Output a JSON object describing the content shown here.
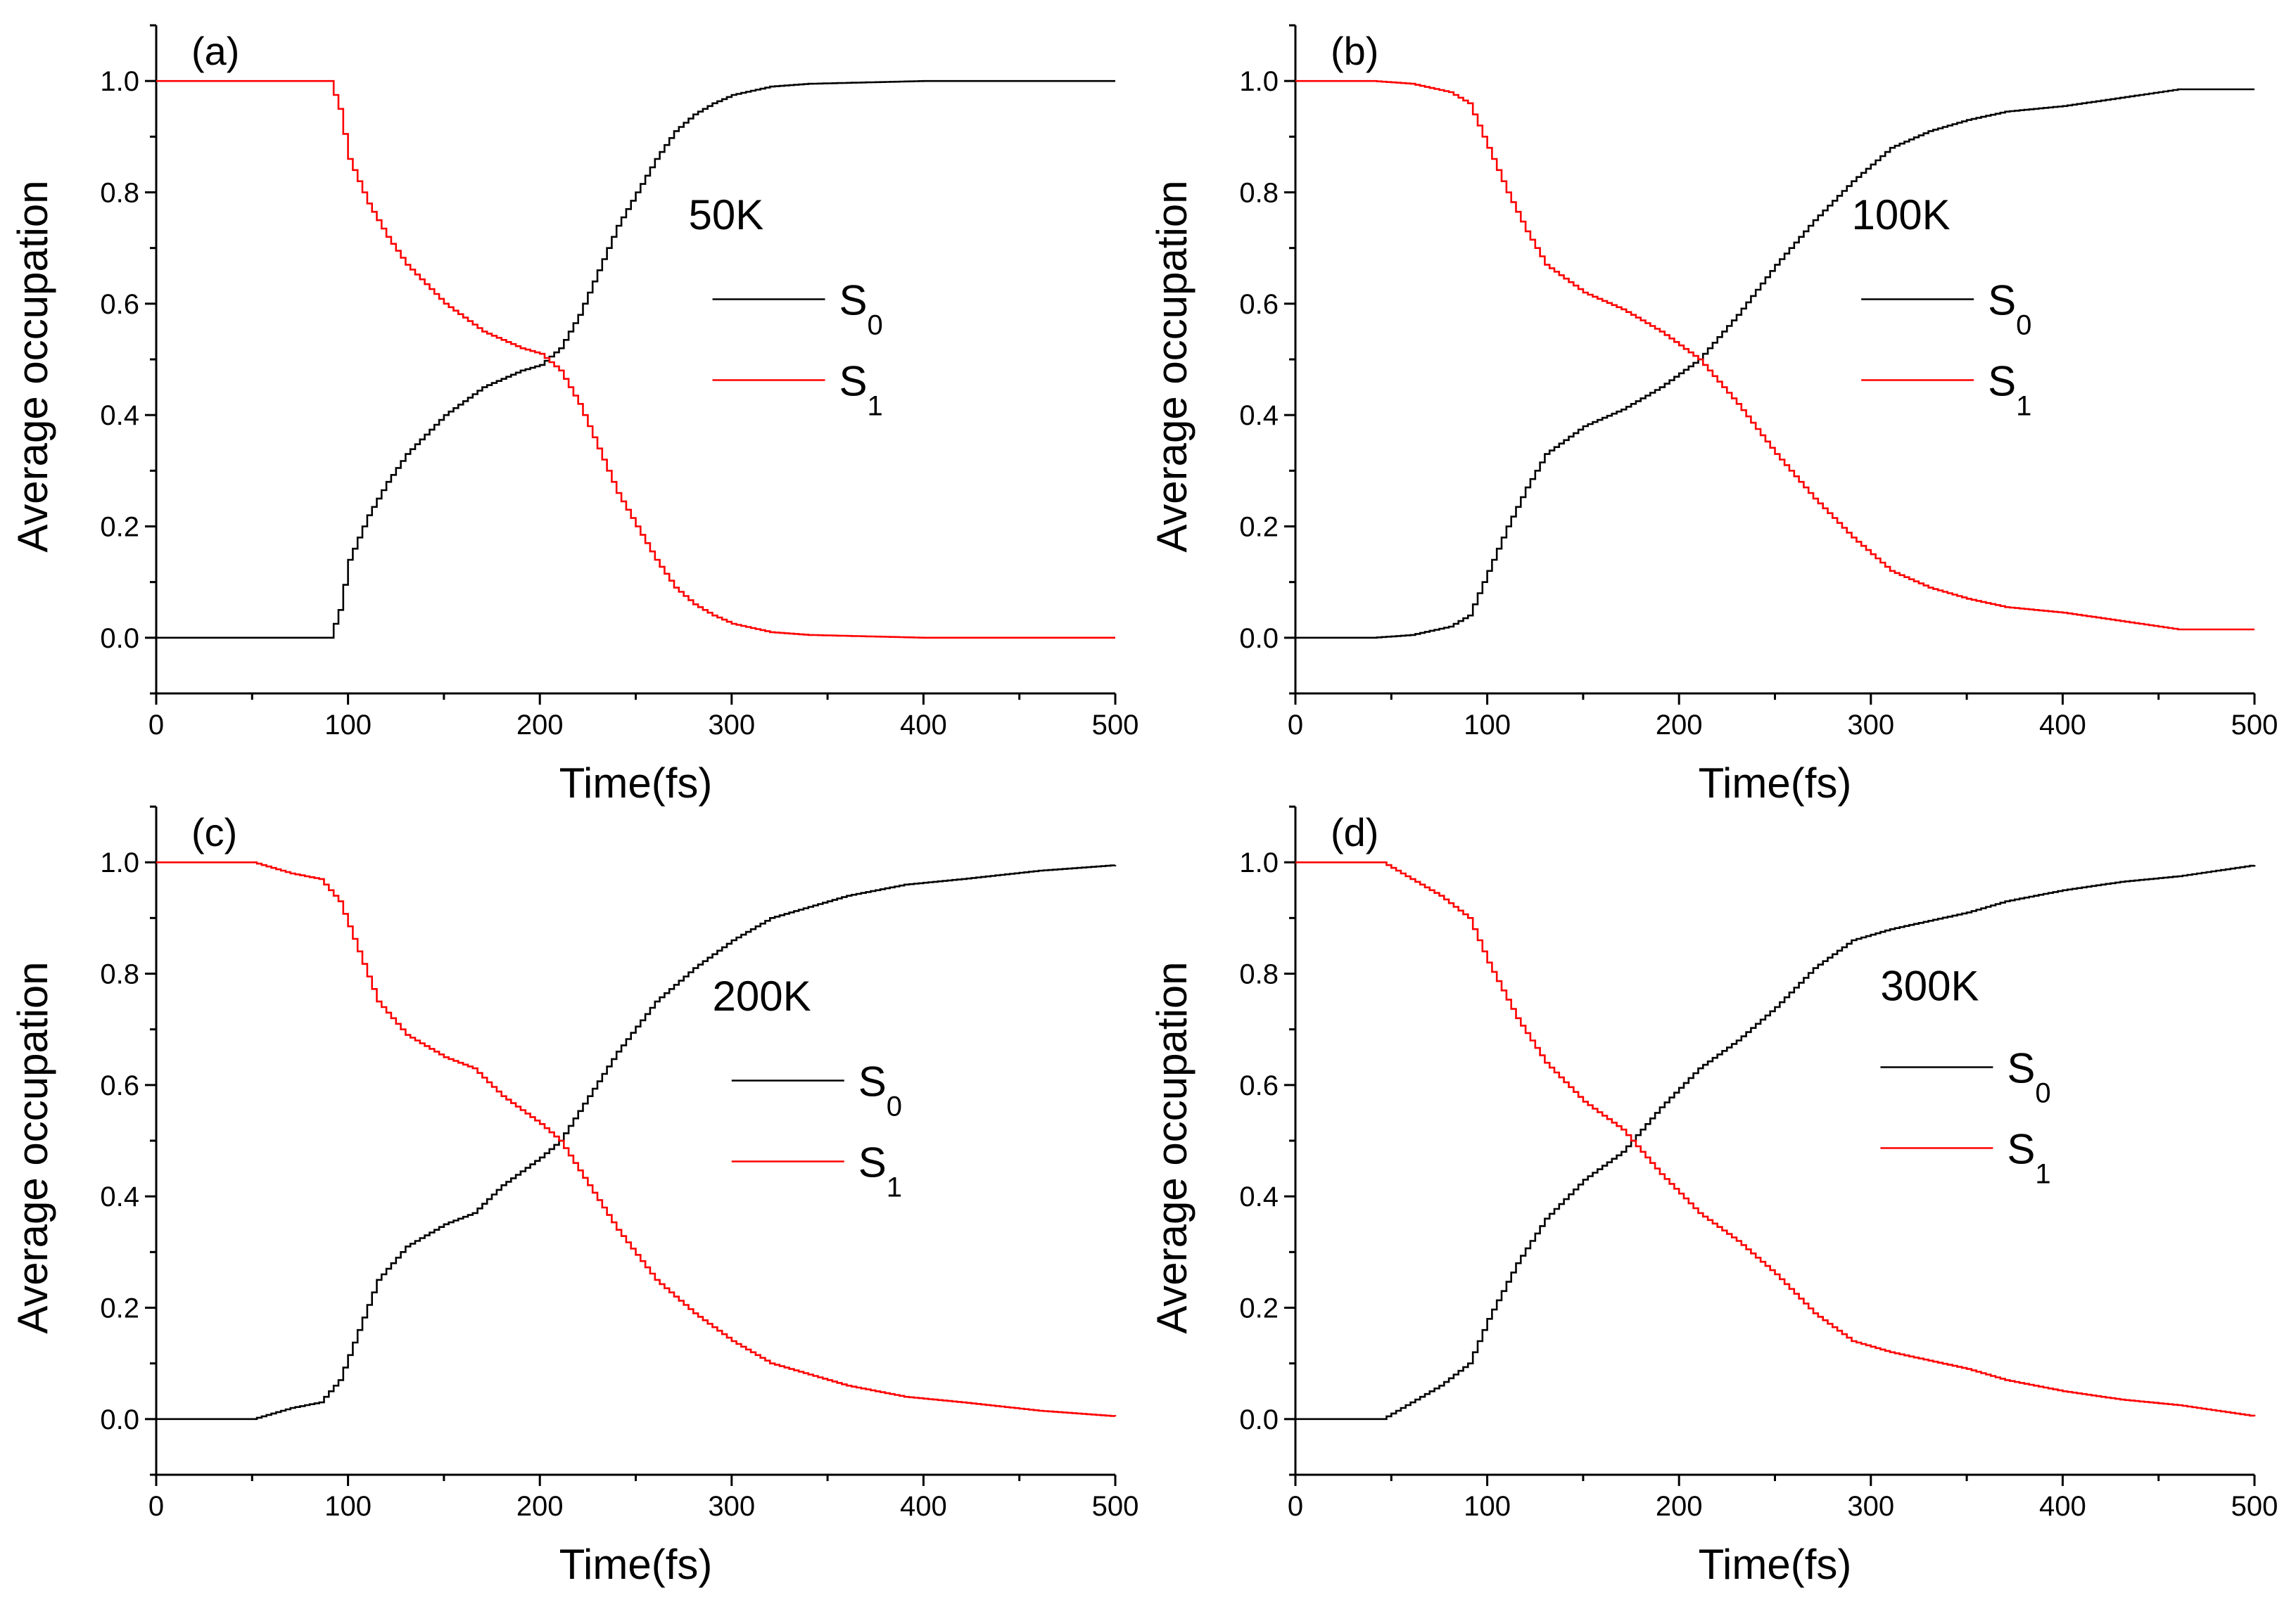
{
  "chart_data": [
    {
      "type": "line",
      "panel_label": "(a)",
      "temperature": "50K",
      "xlabel": "Time(fs)",
      "ylabel": "Average occupation",
      "xlim": [
        0,
        500
      ],
      "ylim": [
        -0.1,
        1.1
      ],
      "xticks": [
        0,
        100,
        200,
        300,
        400,
        500
      ],
      "yticks": [
        0.0,
        0.2,
        0.4,
        0.6,
        0.8,
        1.0
      ],
      "legend": [
        {
          "name": "S",
          "sub": "0",
          "color": "#000000"
        },
        {
          "name": "S",
          "sub": "1",
          "color": "#ff0000"
        }
      ],
      "series": [
        {
          "name": "S0",
          "color": "#000000",
          "x": [
            0,
            90,
            95,
            100,
            110,
            120,
            130,
            150,
            170,
            190,
            200,
            210,
            220,
            230,
            240,
            250,
            260,
            270,
            280,
            290,
            300,
            320,
            340,
            400,
            500
          ],
          "y": [
            0,
            0,
            0.05,
            0.14,
            0.22,
            0.28,
            0.33,
            0.4,
            0.45,
            0.48,
            0.49,
            0.52,
            0.58,
            0.66,
            0.74,
            0.8,
            0.86,
            0.91,
            0.94,
            0.96,
            0.975,
            0.99,
            0.995,
            1.0,
            1.0
          ]
        },
        {
          "name": "S1",
          "color": "#ff0000",
          "x": [
            0,
            90,
            95,
            100,
            110,
            120,
            130,
            150,
            170,
            190,
            200,
            210,
            220,
            230,
            240,
            250,
            260,
            270,
            280,
            290,
            300,
            320,
            340,
            400,
            500
          ],
          "y": [
            1,
            1,
            0.95,
            0.86,
            0.78,
            0.72,
            0.67,
            0.6,
            0.55,
            0.52,
            0.51,
            0.48,
            0.42,
            0.34,
            0.26,
            0.2,
            0.14,
            0.09,
            0.06,
            0.04,
            0.025,
            0.01,
            0.005,
            0,
            0
          ]
        }
      ]
    },
    {
      "type": "line",
      "panel_label": "(b)",
      "temperature": "100K",
      "xlabel": "Time(fs)",
      "ylabel": "Average occupation",
      "xlim": [
        0,
        500
      ],
      "ylim": [
        -0.1,
        1.1
      ],
      "xticks": [
        0,
        100,
        200,
        300,
        400,
        500
      ],
      "yticks": [
        0.0,
        0.2,
        0.4,
        0.6,
        0.8,
        1.0
      ],
      "legend": [
        {
          "name": "S",
          "sub": "0",
          "color": "#000000"
        },
        {
          "name": "S",
          "sub": "1",
          "color": "#ff0000"
        }
      ],
      "series": [
        {
          "name": "S0",
          "color": "#000000",
          "x": [
            0,
            40,
            60,
            80,
            90,
            100,
            110,
            120,
            130,
            150,
            170,
            190,
            210,
            230,
            250,
            270,
            290,
            310,
            330,
            350,
            370,
            400,
            430,
            460,
            500
          ],
          "y": [
            0,
            0,
            0.005,
            0.02,
            0.04,
            0.12,
            0.2,
            0.27,
            0.33,
            0.38,
            0.41,
            0.45,
            0.5,
            0.58,
            0.67,
            0.75,
            0.82,
            0.88,
            0.91,
            0.93,
            0.945,
            0.955,
            0.97,
            0.985,
            0.985
          ]
        },
        {
          "name": "S1",
          "color": "#ff0000",
          "x": [
            0,
            40,
            60,
            80,
            90,
            100,
            110,
            120,
            130,
            150,
            170,
            190,
            210,
            230,
            250,
            270,
            290,
            310,
            330,
            350,
            370,
            400,
            430,
            460,
            500
          ],
          "y": [
            1,
            1,
            0.995,
            0.98,
            0.96,
            0.88,
            0.8,
            0.73,
            0.67,
            0.62,
            0.59,
            0.55,
            0.5,
            0.42,
            0.33,
            0.25,
            0.18,
            0.12,
            0.09,
            0.07,
            0.055,
            0.045,
            0.03,
            0.015,
            0.015
          ]
        }
      ]
    },
    {
      "type": "line",
      "panel_label": "(c)",
      "temperature": "200K",
      "xlabel": "Time(fs)",
      "ylabel": "Average occupation",
      "xlim": [
        0,
        500
      ],
      "ylim": [
        -0.1,
        1.1
      ],
      "xticks": [
        0,
        100,
        200,
        300,
        400,
        500
      ],
      "yticks": [
        0.0,
        0.2,
        0.4,
        0.6,
        0.8,
        1.0
      ],
      "legend": [
        {
          "name": "S",
          "sub": "0",
          "color": "#000000"
        },
        {
          "name": "S",
          "sub": "1",
          "color": "#ff0000"
        }
      ],
      "series": [
        {
          "name": "S0",
          "color": "#000000",
          "x": [
            0,
            50,
            70,
            85,
            95,
            105,
            115,
            130,
            150,
            165,
            180,
            200,
            210,
            225,
            240,
            260,
            280,
            300,
            320,
            340,
            360,
            390,
            420,
            460,
            500
          ],
          "y": [
            0,
            0,
            0.02,
            0.03,
            0.07,
            0.16,
            0.25,
            0.31,
            0.35,
            0.37,
            0.42,
            0.47,
            0.5,
            0.58,
            0.66,
            0.75,
            0.81,
            0.86,
            0.9,
            0.92,
            0.94,
            0.96,
            0.97,
            0.985,
            0.995
          ]
        },
        {
          "name": "S1",
          "color": "#ff0000",
          "x": [
            0,
            50,
            70,
            85,
            95,
            105,
            115,
            130,
            150,
            165,
            180,
            200,
            210,
            225,
            240,
            260,
            280,
            300,
            320,
            340,
            360,
            390,
            420,
            460,
            500
          ],
          "y": [
            1,
            1,
            0.98,
            0.97,
            0.93,
            0.84,
            0.75,
            0.69,
            0.65,
            0.63,
            0.58,
            0.53,
            0.5,
            0.42,
            0.34,
            0.25,
            0.19,
            0.14,
            0.1,
            0.08,
            0.06,
            0.04,
            0.03,
            0.015,
            0.005
          ]
        }
      ]
    },
    {
      "type": "line",
      "panel_label": "(d)",
      "temperature": "300K",
      "xlabel": "Time(fs)",
      "ylabel": "Average occupation",
      "xlim": [
        0,
        500
      ],
      "ylim": [
        -0.1,
        1.1
      ],
      "xticks": [
        0,
        100,
        200,
        300,
        400,
        500
      ],
      "yticks": [
        0.0,
        0.2,
        0.4,
        0.6,
        0.8,
        1.0
      ],
      "legend": [
        {
          "name": "S",
          "sub": "0",
          "color": "#000000"
        },
        {
          "name": "S",
          "sub": "1",
          "color": "#ff0000"
        }
      ],
      "series": [
        {
          "name": "S0",
          "color": "#000000",
          "x": [
            0,
            45,
            60,
            75,
            90,
            100,
            115,
            130,
            150,
            170,
            190,
            210,
            230,
            250,
            270,
            290,
            310,
            330,
            350,
            370,
            400,
            430,
            460,
            490,
            500
          ],
          "y": [
            0,
            0,
            0.03,
            0.06,
            0.1,
            0.18,
            0.28,
            0.36,
            0.43,
            0.48,
            0.56,
            0.63,
            0.68,
            0.74,
            0.81,
            0.86,
            0.88,
            0.895,
            0.91,
            0.93,
            0.95,
            0.965,
            0.975,
            0.99,
            0.995
          ]
        },
        {
          "name": "S1",
          "color": "#ff0000",
          "x": [
            0,
            45,
            60,
            75,
            90,
            100,
            115,
            130,
            150,
            170,
            190,
            210,
            230,
            250,
            270,
            290,
            310,
            330,
            350,
            370,
            400,
            430,
            460,
            490,
            500
          ],
          "y": [
            1,
            1,
            0.97,
            0.94,
            0.9,
            0.82,
            0.72,
            0.64,
            0.57,
            0.52,
            0.44,
            0.37,
            0.32,
            0.26,
            0.19,
            0.14,
            0.12,
            0.105,
            0.09,
            0.07,
            0.05,
            0.035,
            0.025,
            0.01,
            0.005
          ]
        }
      ]
    }
  ]
}
